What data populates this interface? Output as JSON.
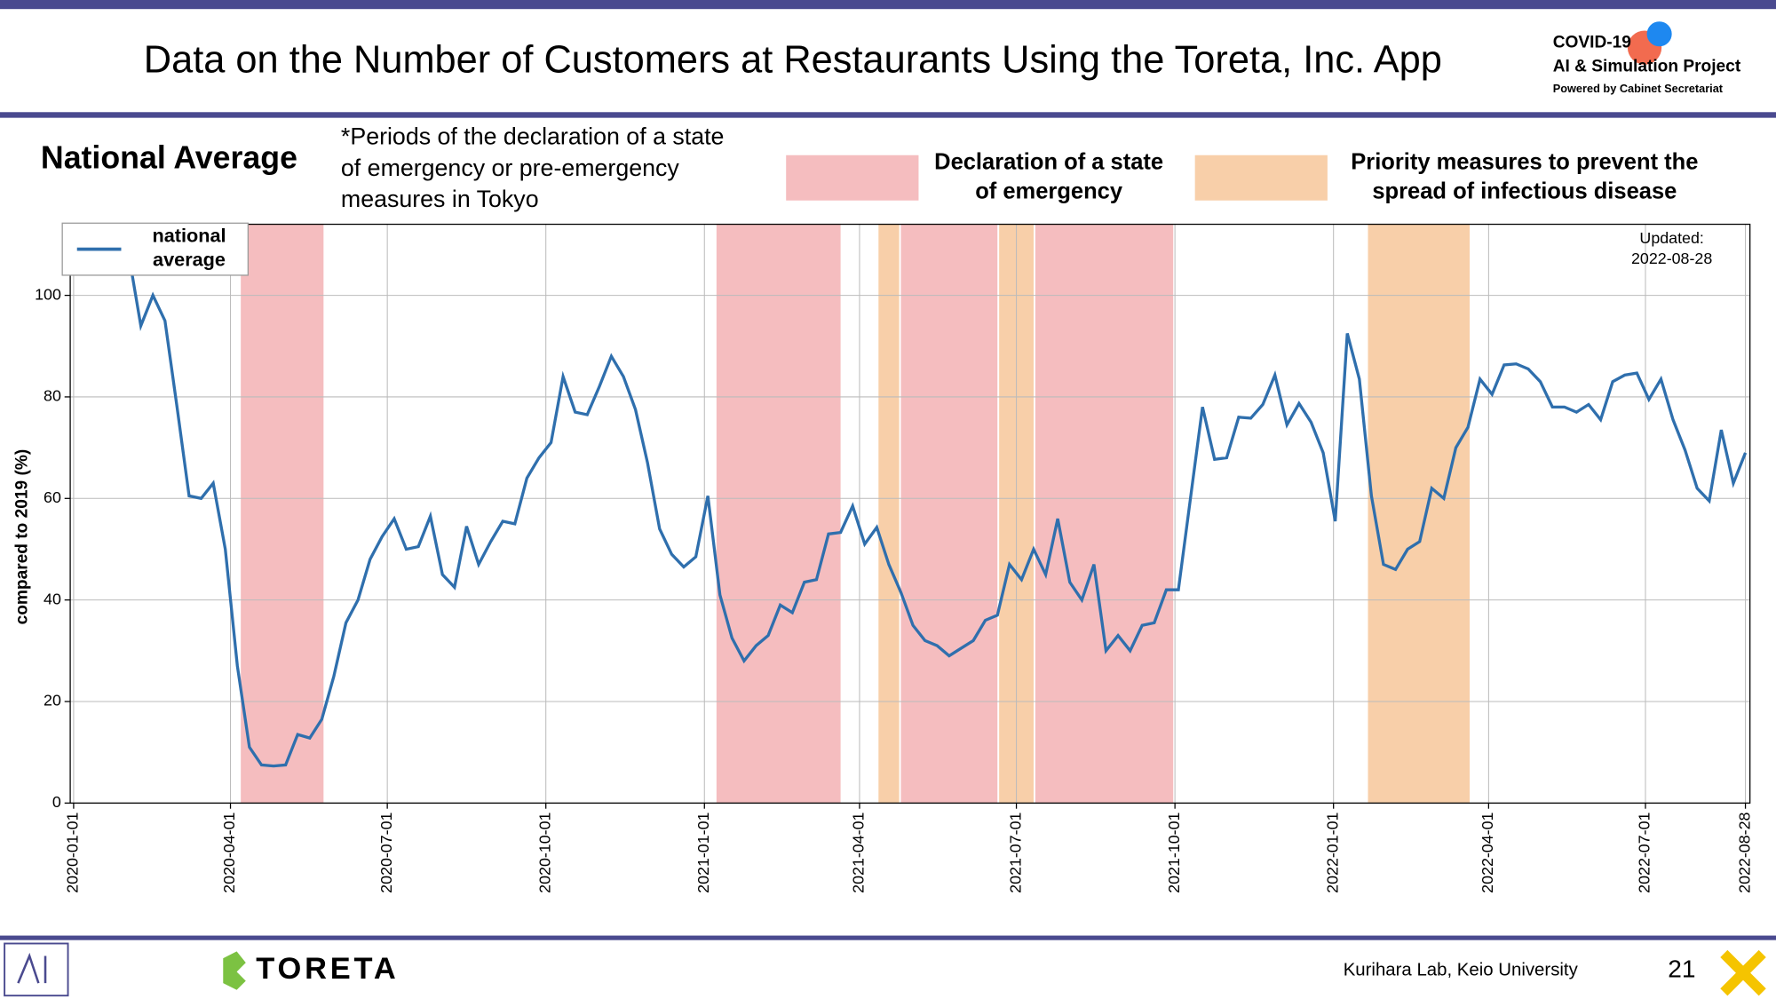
{
  "header": {
    "title": "Data on the Number of Customers at Restaurants Using the Toreta, Inc. App",
    "logo": {
      "line1": "COVID-19",
      "line2": "AI & Simulation Project",
      "line3": "Powered by Cabinet Secretariat"
    }
  },
  "chart_data": {
    "type": "line",
    "title": "National Average",
    "note_lines": [
      "*Periods of the declaration of a state",
      "of emergency or pre-emergency",
      "measures in Tokyo"
    ],
    "ylabel": "compared to 2019 (%)",
    "updated_lines": [
      "Updated:",
      "2022-08-28"
    ],
    "xlim": [
      "2020-01-01",
      "2022-08-28"
    ],
    "xticks": [
      "2020-01-01",
      "2020-04-01",
      "2020-07-01",
      "2020-10-01",
      "2021-01-01",
      "2021-04-01",
      "2021-07-01",
      "2021-10-01",
      "2022-01-01",
      "2022-04-01",
      "2022-07-01",
      "2022-08-28"
    ],
    "ylim": [
      0,
      114
    ],
    "yticks": [
      0,
      20,
      40,
      60,
      80,
      100
    ],
    "grid": true,
    "periods": [
      {
        "label_lines": [
          "Declaration of a state",
          "of emergency"
        ],
        "color": "#f5bdbf",
        "spans": [
          [
            "2020-04-07",
            "2020-05-25"
          ],
          [
            "2021-01-08",
            "2021-03-21"
          ],
          [
            "2021-04-25",
            "2021-06-20"
          ],
          [
            "2021-07-12",
            "2021-09-30"
          ]
        ]
      },
      {
        "label_lines": [
          "Priority measures to prevent the",
          "spread of infectious disease"
        ],
        "color": "#f8cfa9",
        "spans": [
          [
            "2021-04-12",
            "2021-04-24"
          ],
          [
            "2021-06-21",
            "2021-07-11"
          ],
          [
            "2022-01-21",
            "2022-03-21"
          ]
        ]
      }
    ],
    "x": [
      "2020-02-02",
      "2020-02-09",
      "2020-02-16",
      "2020-02-23",
      "2020-03-01",
      "2020-03-08",
      "2020-03-15",
      "2020-03-22",
      "2020-03-29",
      "2020-04-05",
      "2020-04-12",
      "2020-04-19",
      "2020-04-26",
      "2020-05-03",
      "2020-05-10",
      "2020-05-17",
      "2020-05-24",
      "2020-05-31",
      "2020-06-07",
      "2020-06-14",
      "2020-06-21",
      "2020-06-28",
      "2020-07-05",
      "2020-07-12",
      "2020-07-19",
      "2020-07-26",
      "2020-08-02",
      "2020-08-09",
      "2020-08-16",
      "2020-08-23",
      "2020-08-30",
      "2020-09-06",
      "2020-09-13",
      "2020-09-20",
      "2020-09-27",
      "2020-10-04",
      "2020-10-11",
      "2020-10-18",
      "2020-10-25",
      "2020-11-01",
      "2020-11-08",
      "2020-11-15",
      "2020-11-22",
      "2020-11-29",
      "2020-12-06",
      "2020-12-13",
      "2020-12-20",
      "2020-12-27",
      "2021-01-03",
      "2021-01-10",
      "2021-01-17",
      "2021-01-24",
      "2021-01-31",
      "2021-02-07",
      "2021-02-14",
      "2021-02-21",
      "2021-02-28",
      "2021-03-07",
      "2021-03-14",
      "2021-03-21",
      "2021-03-28",
      "2021-04-04",
      "2021-04-11",
      "2021-04-18",
      "2021-04-25",
      "2021-05-02",
      "2021-05-09",
      "2021-05-16",
      "2021-05-23",
      "2021-05-30",
      "2021-06-06",
      "2021-06-13",
      "2021-06-20",
      "2021-06-27",
      "2021-07-04",
      "2021-07-11",
      "2021-07-18",
      "2021-07-25",
      "2021-08-01",
      "2021-08-08",
      "2021-08-15",
      "2021-08-22",
      "2021-08-29",
      "2021-09-05",
      "2021-09-12",
      "2021-09-19",
      "2021-09-26",
      "2021-10-03",
      "2021-10-10",
      "2021-10-17",
      "2021-10-24",
      "2021-10-31",
      "2021-11-07",
      "2021-11-14",
      "2021-11-21",
      "2021-11-28",
      "2021-12-05",
      "2021-12-12",
      "2021-12-19",
      "2021-12-26",
      "2022-01-02",
      "2022-01-09",
      "2022-01-16",
      "2022-01-23",
      "2022-01-30",
      "2022-02-06",
      "2022-02-13",
      "2022-02-20",
      "2022-02-27",
      "2022-03-06",
      "2022-03-13",
      "2022-03-20",
      "2022-03-27",
      "2022-04-03",
      "2022-04-10",
      "2022-04-17",
      "2022-04-24",
      "2022-05-01",
      "2022-05-08",
      "2022-05-15",
      "2022-05-22",
      "2022-05-29",
      "2022-06-05",
      "2022-06-12",
      "2022-06-19",
      "2022-06-26",
      "2022-07-03",
      "2022-07-10",
      "2022-07-17",
      "2022-07-24",
      "2022-07-31",
      "2022-08-07",
      "2022-08-14",
      "2022-08-21",
      "2022-08-28"
    ],
    "series": [
      {
        "name": "national average",
        "color": "#2f6fad",
        "values": [
          108,
          94,
          100,
          95,
          78,
          60.5,
          60,
          63,
          50,
          27,
          11,
          7.5,
          7.3,
          7.5,
          13.5,
          12.8,
          16.5,
          25,
          35.5,
          40,
          48,
          52.5,
          56,
          50,
          50.5,
          56.5,
          45,
          42.5,
          54.5,
          47,
          51.5,
          55.5,
          55,
          64,
          68,
          71,
          84,
          77,
          76.5,
          82,
          88,
          84,
          77.5,
          67,
          54,
          49,
          46.5,
          48.5,
          60.5,
          41,
          32.5,
          28,
          31,
          33,
          39,
          37.5,
          43.5,
          44,
          53,
          53.3,
          58.5,
          51,
          54.3,
          47,
          41.5,
          35,
          32,
          31,
          29,
          30.5,
          32,
          36,
          37,
          47,
          44,
          50,
          45,
          56,
          43.5,
          40,
          47,
          30,
          33,
          30,
          35,
          35.5,
          42,
          42,
          60,
          78,
          67.7,
          68,
          76,
          75.8,
          78.5,
          84.3,
          74.5,
          78.7,
          75,
          69,
          55.5,
          92.5,
          83.5,
          60.5,
          47,
          46,
          50,
          51.5,
          62,
          60,
          70,
          74,
          83.5,
          80.5,
          86.3,
          86.5,
          85.5,
          83,
          78,
          78,
          77,
          78.5,
          75.5,
          83,
          84.3,
          84.7,
          79.5,
          83.5,
          75.5,
          69.5,
          62,
          59.5,
          73.5,
          63,
          69
        ]
      }
    ]
  },
  "footer": {
    "brand": "TORETA",
    "lab": "Kurihara Lab, Keio University",
    "page": "21"
  }
}
